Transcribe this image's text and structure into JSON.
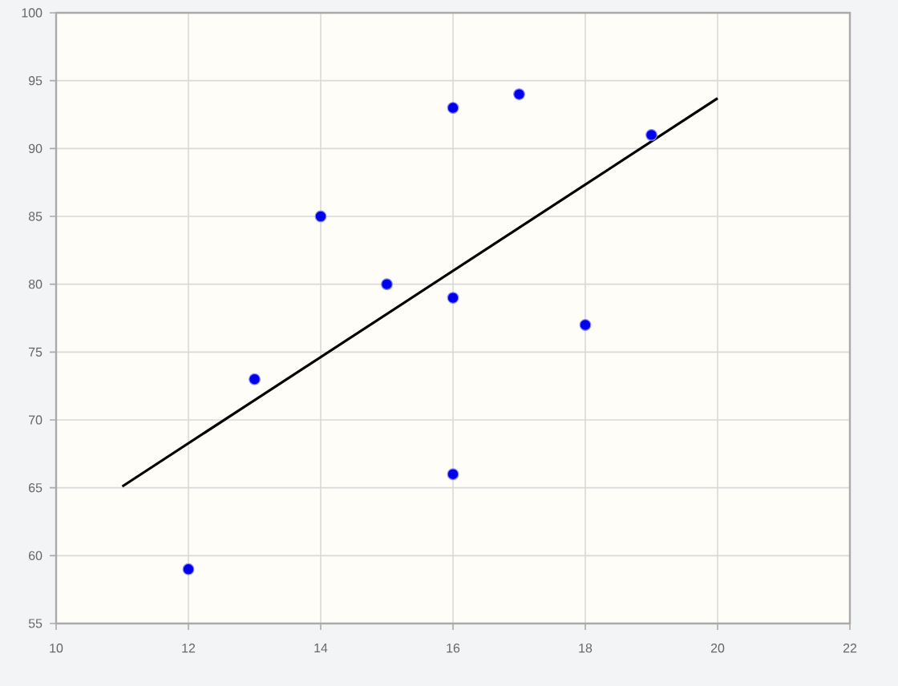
{
  "chart_data": {
    "type": "scatter",
    "x": [
      12,
      13,
      14,
      15,
      16,
      16,
      16,
      17,
      18,
      19
    ],
    "series": [
      {
        "color": "#0000ee",
        "marker": "circle",
        "values": [
          59,
          73,
          85,
          80,
          93,
          79,
          66,
          94,
          77,
          91
        ]
      },
      {
        "type": "line",
        "color": "#000000",
        "marker": "none",
        "line_style": "solid",
        "x": [
          11,
          20
        ],
        "values": [
          65.1,
          93.7
        ]
      }
    ],
    "xlim": [
      10,
      22
    ],
    "ylim": [
      55,
      100
    ],
    "xticks": [
      10,
      12,
      14,
      16,
      18,
      20,
      22
    ],
    "yticks": [
      55,
      60,
      65,
      70,
      75,
      80,
      85,
      90,
      95,
      100
    ],
    "grid": true
  }
}
